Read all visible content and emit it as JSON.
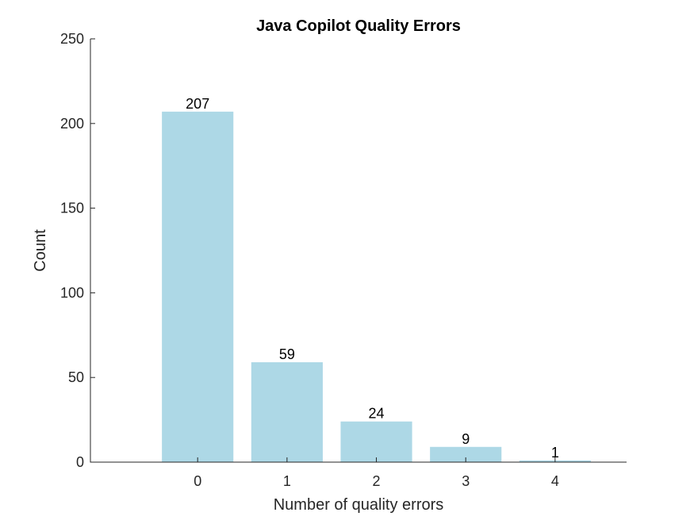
{
  "chart_data": {
    "type": "bar",
    "title": "Java Copilot Quality Errors",
    "xlabel": "Number of quality errors",
    "ylabel": "Count",
    "categories": [
      "0",
      "1",
      "2",
      "3",
      "4"
    ],
    "values": [
      207,
      59,
      24,
      9,
      1
    ],
    "data_labels": [
      "207",
      "59",
      "24",
      "9",
      "1"
    ],
    "xlim": [
      -1.2,
      4.8
    ],
    "ylim": [
      0,
      250
    ],
    "yticks": [
      0,
      50,
      100,
      150,
      200,
      250
    ],
    "ytick_labels": [
      "0",
      "50",
      "100",
      "150",
      "200",
      "250"
    ],
    "grid": false,
    "legend": "none",
    "bar_color": "#add8e6"
  }
}
